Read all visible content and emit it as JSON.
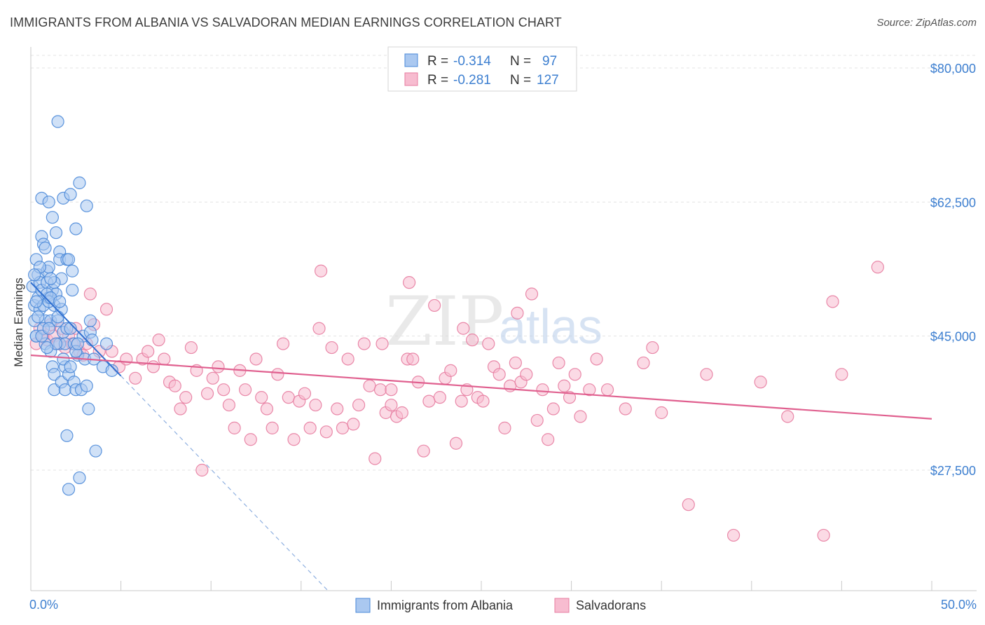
{
  "title": "IMMIGRANTS FROM ALBANIA VS SALVADORAN MEDIAN EARNINGS CORRELATION CHART",
  "source": "Source: ZipAtlas.com",
  "watermark": {
    "zip": "ZIP",
    "atlas": "atlas"
  },
  "legend": {
    "series1": {
      "r_label": "R =",
      "r_value": "-0.314",
      "n_label": "N =",
      "n_value": "97"
    },
    "series2": {
      "r_label": "R =",
      "r_value": "-0.281",
      "n_label": "N =",
      "n_value": "127"
    }
  },
  "colors": {
    "blue_fill": "#aac8f0",
    "blue_stroke": "#4a88d8",
    "blue_line": "#2f6fd0",
    "pink_fill": "#f7bcd0",
    "pink_stroke": "#e77ca0",
    "pink_line": "#e0608f",
    "tick_text": "#3d7fd0",
    "grid": "#e3e3e3"
  },
  "chart_data": {
    "type": "scatter",
    "title": "IMMIGRANTS FROM ALBANIA VS SALVADORAN MEDIAN EARNINGS CORRELATION CHART",
    "ylabel": "Median Earnings",
    "xlabel": "",
    "xlim": [
      0,
      50
    ],
    "ylim": [
      10000,
      84000
    ],
    "x_tick_labels": [
      "0.0%",
      "50.0%"
    ],
    "y_ticks": [
      27500,
      45000,
      62500,
      80000
    ],
    "y_tick_labels": [
      "$27,500",
      "$45,000",
      "$62,500",
      "$80,000"
    ],
    "series": [
      {
        "name": "Immigrants from Albania",
        "trend": {
          "x0": 0,
          "y0": 52000,
          "x1": 5.0,
          "y1": 39800,
          "dash_to_x": 16.5
        },
        "points": [
          [
            0.1,
            51.5
          ],
          [
            0.2,
            49
          ],
          [
            0.2,
            47
          ],
          [
            0.3,
            55
          ],
          [
            0.3,
            45
          ],
          [
            0.4,
            50
          ],
          [
            0.4,
            53
          ],
          [
            0.5,
            48.5
          ],
          [
            0.5,
            52
          ],
          [
            0.6,
            51
          ],
          [
            0.6,
            58
          ],
          [
            0.6,
            63
          ],
          [
            0.7,
            57
          ],
          [
            0.7,
            49
          ],
          [
            0.8,
            47
          ],
          [
            0.8,
            44
          ],
          [
            0.9,
            52
          ],
          [
            0.9,
            53.5
          ],
          [
            1.0,
            50
          ],
          [
            1.0,
            62.5
          ],
          [
            1.0,
            54
          ],
          [
            1.1,
            47
          ],
          [
            1.1,
            43
          ],
          [
            1.2,
            60.5
          ],
          [
            1.2,
            51
          ],
          [
            1.2,
            41
          ],
          [
            1.3,
            49
          ],
          [
            1.3,
            38
          ],
          [
            1.3,
            40
          ],
          [
            1.4,
            58.5
          ],
          [
            1.4,
            50.5
          ],
          [
            1.5,
            47
          ],
          [
            1.5,
            73
          ],
          [
            1.6,
            56
          ],
          [
            1.6,
            55
          ],
          [
            1.6,
            44
          ],
          [
            1.7,
            48.5
          ],
          [
            1.7,
            39
          ],
          [
            1.7,
            52.5
          ],
          [
            1.8,
            45.5
          ],
          [
            1.8,
            63
          ],
          [
            1.9,
            38
          ],
          [
            1.9,
            41
          ],
          [
            1.9,
            44
          ],
          [
            2.0,
            32
          ],
          [
            2.0,
            46
          ],
          [
            2.0,
            55
          ],
          [
            2.1,
            25
          ],
          [
            2.1,
            55
          ],
          [
            2.1,
            40
          ],
          [
            2.2,
            63.5
          ],
          [
            2.2,
            46
          ],
          [
            2.3,
            53.5
          ],
          [
            2.3,
            51
          ],
          [
            2.4,
            39
          ],
          [
            2.4,
            44
          ],
          [
            2.5,
            38
          ],
          [
            2.5,
            59
          ],
          [
            2.6,
            42.5
          ],
          [
            2.7,
            65
          ],
          [
            2.7,
            26.5
          ],
          [
            2.8,
            38
          ],
          [
            2.9,
            45
          ],
          [
            3.0,
            42
          ],
          [
            3.1,
            38.5
          ],
          [
            3.1,
            62
          ],
          [
            3.2,
            35.5
          ],
          [
            3.3,
            47
          ],
          [
            3.3,
            45.5
          ],
          [
            3.5,
            42
          ],
          [
            3.6,
            30
          ],
          [
            4.0,
            41
          ],
          [
            4.2,
            44
          ],
          [
            0.3,
            45
          ],
          [
            0.9,
            50.5
          ],
          [
            1.0,
            49.5
          ],
          [
            1.1,
            50
          ],
          [
            0.5,
            54
          ],
          [
            0.7,
            46
          ],
          [
            1.4,
            44
          ],
          [
            1.6,
            49.5
          ],
          [
            2.5,
            43
          ],
          [
            0.4,
            47.5
          ],
          [
            0.2,
            53
          ],
          [
            0.8,
            56.5
          ],
          [
            1.3,
            52
          ],
          [
            1.5,
            47.5
          ],
          [
            2.6,
            44
          ],
          [
            1.8,
            42
          ],
          [
            0.6,
            45
          ],
          [
            1.0,
            46
          ],
          [
            3.4,
            44.5
          ],
          [
            2.2,
            41
          ],
          [
            1.1,
            52.5
          ],
          [
            0.3,
            49.5
          ],
          [
            4.5,
            40.5
          ],
          [
            0.9,
            43.5
          ]
        ]
      },
      {
        "name": "Salvadorans",
        "trend": {
          "x0": 0,
          "y0": 42500,
          "x1": 50,
          "y1": 34200
        },
        "points": [
          [
            0.3,
            44
          ],
          [
            0.5,
            46
          ],
          [
            0.7,
            45
          ],
          [
            0.9,
            44.5
          ],
          [
            1.1,
            46.5
          ],
          [
            1.3,
            45
          ],
          [
            1.5,
            44
          ],
          [
            1.7,
            46
          ],
          [
            1.9,
            43.5
          ],
          [
            2.1,
            45
          ],
          [
            2.3,
            44
          ],
          [
            2.5,
            46
          ],
          [
            2.7,
            43
          ],
          [
            2.9,
            42.5
          ],
          [
            3.1,
            44
          ],
          [
            3.3,
            50.5
          ],
          [
            3.5,
            46.5
          ],
          [
            3.8,
            43
          ],
          [
            4.2,
            48.5
          ],
          [
            4.5,
            43
          ],
          [
            4.9,
            41
          ],
          [
            5.3,
            42
          ],
          [
            5.8,
            39.5
          ],
          [
            6.2,
            42
          ],
          [
            6.5,
            43
          ],
          [
            6.8,
            41
          ],
          [
            7.1,
            44.5
          ],
          [
            7.4,
            42
          ],
          [
            7.7,
            39
          ],
          [
            8.0,
            38.5
          ],
          [
            8.3,
            35.5
          ],
          [
            8.6,
            37
          ],
          [
            8.9,
            43.5
          ],
          [
            9.2,
            40.5
          ],
          [
            9.5,
            27.5
          ],
          [
            9.8,
            37.5
          ],
          [
            10.1,
            39.5
          ],
          [
            10.4,
            41
          ],
          [
            10.7,
            38
          ],
          [
            11.0,
            36
          ],
          [
            11.3,
            33
          ],
          [
            11.6,
            40.5
          ],
          [
            11.9,
            38
          ],
          [
            12.2,
            31.5
          ],
          [
            12.5,
            42
          ],
          [
            12.8,
            37
          ],
          [
            13.1,
            35.5
          ],
          [
            13.4,
            33
          ],
          [
            13.7,
            40
          ],
          [
            14.0,
            44
          ],
          [
            14.3,
            37
          ],
          [
            14.6,
            31.5
          ],
          [
            14.9,
            36.5
          ],
          [
            15.2,
            37.5
          ],
          [
            15.5,
            33
          ],
          [
            15.8,
            36
          ],
          [
            16.1,
            53.5
          ],
          [
            16.4,
            32.5
          ],
          [
            16.7,
            43.5
          ],
          [
            17.0,
            35.5
          ],
          [
            17.3,
            33
          ],
          [
            17.6,
            42
          ],
          [
            17.9,
            33.5
          ],
          [
            18.2,
            36
          ],
          [
            18.5,
            44
          ],
          [
            18.8,
            38.5
          ],
          [
            19.1,
            29
          ],
          [
            19.4,
            38
          ],
          [
            19.7,
            35
          ],
          [
            20.0,
            36
          ],
          [
            20.3,
            34.5
          ],
          [
            20.6,
            35
          ],
          [
            20.9,
            42
          ],
          [
            21.2,
            42
          ],
          [
            21.5,
            39
          ],
          [
            21.8,
            30
          ],
          [
            22.1,
            36.5
          ],
          [
            22.4,
            49
          ],
          [
            22.7,
            37
          ],
          [
            23.0,
            39.5
          ],
          [
            23.3,
            40.5
          ],
          [
            23.6,
            31
          ],
          [
            23.9,
            36.5
          ],
          [
            24.2,
            38
          ],
          [
            24.5,
            44.5
          ],
          [
            24.8,
            37
          ],
          [
            25.1,
            36.5
          ],
          [
            25.4,
            44
          ],
          [
            25.7,
            41
          ],
          [
            26.0,
            40
          ],
          [
            26.3,
            33
          ],
          [
            26.6,
            38.5
          ],
          [
            26.9,
            41.5
          ],
          [
            27.2,
            39
          ],
          [
            27.5,
            40
          ],
          [
            27.8,
            50.5
          ],
          [
            28.1,
            34
          ],
          [
            28.4,
            38
          ],
          [
            28.7,
            31.5
          ],
          [
            29.0,
            35.5
          ],
          [
            29.3,
            41.5
          ],
          [
            29.6,
            38.5
          ],
          [
            29.9,
            37
          ],
          [
            30.2,
            40
          ],
          [
            30.5,
            34.5
          ],
          [
            31.0,
            38
          ],
          [
            31.4,
            42
          ],
          [
            32.0,
            38
          ],
          [
            33.0,
            35.5
          ],
          [
            34.0,
            41.5
          ],
          [
            34.5,
            43.5
          ],
          [
            35.0,
            35
          ],
          [
            36.5,
            23
          ],
          [
            37.5,
            40
          ],
          [
            39.0,
            19
          ],
          [
            40.5,
            39
          ],
          [
            42.0,
            34.5
          ],
          [
            44.0,
            19
          ],
          [
            45.0,
            40
          ],
          [
            47.0,
            54
          ],
          [
            44.5,
            49.5
          ],
          [
            27.0,
            48
          ],
          [
            19.5,
            44
          ],
          [
            24.0,
            46
          ],
          [
            21.0,
            52
          ],
          [
            16.0,
            46
          ],
          [
            20.0,
            38
          ]
        ]
      }
    ]
  },
  "bottom_legend": {
    "series1": "Immigrants from Albania",
    "series2": "Salvadorans"
  }
}
